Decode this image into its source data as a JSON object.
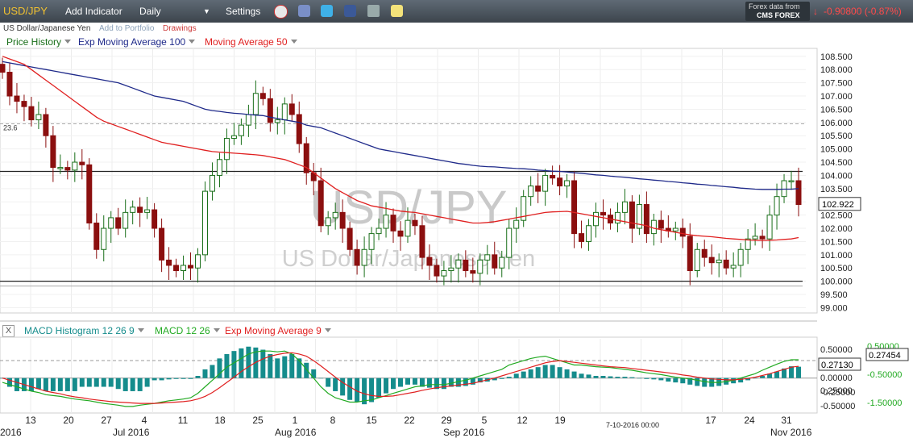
{
  "toolbar": {
    "symbol": "USD/JPY",
    "add_indicator": "Add Indicator",
    "interval": "Daily",
    "settings": "Settings",
    "source_line1": "Forex data from",
    "source_line2": "CMS FOREX",
    "change": "-0.90800 (-0.87%)"
  },
  "subbar": {
    "name": "US Dollar/Japanese Yen",
    "portfolio": "Add to Portfolio",
    "drawings": "Drawings"
  },
  "watermark": {
    "symbol": "USD/JPY",
    "name": "US Dollar/Japanese Yen"
  },
  "legend": {
    "price_history": "Price History",
    "ema": "Exp Moving Average 100",
    "ma": "Moving Average 50",
    "colors": {
      "price": "#1a6f1a",
      "ema": "#1f2a8a",
      "ma": "#e02020"
    }
  },
  "macd_legend": {
    "close": "X",
    "hist": "MACD Histogram 12 26 9",
    "macd": "MACD 12 26",
    "signal": "Exp Moving Average 9",
    "colors": {
      "hist": "#158c8c",
      "macd": "#22aa22",
      "signal": "#e02020"
    }
  },
  "chart_data": [
    {
      "type": "candlestick",
      "ylim": [
        98.8,
        108.8
      ],
      "y_ticks": [
        "108.500",
        "108.000",
        "107.500",
        "107.000",
        "106.500",
        "106.000",
        "105.500",
        "105.000",
        "104.500",
        "104.000",
        "103.500",
        "103.000",
        "102.500",
        "102.000",
        "101.500",
        "101.000",
        "100.500",
        "100.000",
        "99.500",
        "99.000"
      ],
      "current_price": "102.922",
      "fib_label": "23.6",
      "levels": {
        "resistance": 104.15,
        "support": 100.0,
        "fib": 105.95
      },
      "x_labels": [
        {
          "label": "13",
          "row": 1
        },
        {
          "label": "20",
          "row": 1
        },
        {
          "label": "27",
          "row": 1
        },
        {
          "label": "4",
          "row": 1
        },
        {
          "label": "11",
          "row": 1
        },
        {
          "label": "18",
          "row": 1
        },
        {
          "label": "25",
          "row": 1
        },
        {
          "label": "1",
          "row": 1
        },
        {
          "label": "8",
          "row": 1
        },
        {
          "label": "15",
          "row": 1
        },
        {
          "label": "22",
          "row": 1
        },
        {
          "label": "29",
          "row": 1
        },
        {
          "label": "5",
          "row": 1
        },
        {
          "label": "12",
          "row": 1
        },
        {
          "label": "19",
          "row": 1
        },
        {
          "label": "17",
          "row": 1
        },
        {
          "label": "24",
          "row": 1
        },
        {
          "label": "31",
          "row": 1
        },
        {
          "label": "2016",
          "row": 2
        },
        {
          "label": "Jul 2016",
          "row": 2
        },
        {
          "label": "Aug 2016",
          "row": 2
        },
        {
          "label": "Sep 2016",
          "row": 2
        },
        {
          "label": "Nov 2016",
          "row": 2
        }
      ],
      "cursor_date": "7-10-2016 00:00",
      "closes": [
        107.9,
        107.0,
        106.8,
        106.6,
        106.1,
        106.3,
        105.5,
        104.3,
        104.3,
        104.2,
        104.5,
        104.4,
        102.2,
        101.2,
        102.0,
        102.4,
        102.0,
        102.6,
        102.8,
        102.6,
        102.7,
        102.0,
        100.8,
        100.6,
        100.4,
        100.6,
        100.5,
        101.0,
        103.4,
        104.0,
        104.6,
        105.4,
        105.5,
        105.9,
        106.3,
        107.1,
        106.9,
        106.0,
        106.1,
        106.7,
        106.3,
        105.2,
        104.1,
        103.8,
        102.1,
        102.4,
        102.6,
        102.0,
        101.2,
        100.6,
        101.2,
        101.8,
        102.0,
        102.5,
        101.9,
        101.7,
        102.3,
        102.1,
        100.9,
        100.6,
        100.2,
        100.4,
        100.5,
        100.8,
        100.4,
        100.3,
        100.8,
        101.0,
        100.5,
        100.9,
        102.0,
        102.3,
        103.2,
        103.6,
        103.4,
        104.0,
        103.9,
        103.6,
        103.8,
        101.8,
        101.5,
        102.1,
        102.6,
        102.5,
        102.2,
        102.6,
        103.0,
        102.0,
        102.9,
        101.8,
        102.3,
        102.0,
        101.9,
        102.0,
        101.7,
        100.4,
        101.2,
        100.9,
        100.7,
        100.8,
        100.5,
        100.6,
        101.2,
        101.6,
        101.7,
        101.6,
        102.5,
        103.2,
        103.8,
        103.8,
        102.9
      ],
      "ema100": [
        108.3,
        108.25,
        108.2,
        108.15,
        108.1,
        108.05,
        108.0,
        107.95,
        107.9,
        107.85,
        107.8,
        107.75,
        107.7,
        107.65,
        107.6,
        107.55,
        107.5,
        107.4,
        107.3,
        107.2,
        107.1,
        107.0,
        106.95,
        106.9,
        106.85,
        106.8,
        106.7,
        106.6,
        106.5,
        106.45,
        106.42,
        106.38,
        106.35,
        106.33,
        106.3,
        106.28,
        106.26,
        106.2,
        106.15,
        106.1,
        106.05,
        106.0,
        105.9,
        105.85,
        105.8,
        105.7,
        105.6,
        105.5,
        105.4,
        105.3,
        105.2,
        105.1,
        105.0,
        104.95,
        104.9,
        104.85,
        104.8,
        104.75,
        104.7,
        104.65,
        104.6,
        104.55,
        104.5,
        104.45,
        104.42,
        104.38,
        104.35,
        104.33,
        104.32,
        104.3,
        104.28,
        104.26,
        104.25,
        104.23,
        104.2,
        104.18,
        104.16,
        104.15,
        104.13,
        104.1,
        104.08,
        104.05,
        104.02,
        104.0,
        103.97,
        103.95,
        103.93,
        103.9,
        103.87,
        103.85,
        103.82,
        103.8,
        103.77,
        103.75,
        103.72,
        103.7,
        103.67,
        103.65,
        103.62,
        103.6,
        103.57,
        103.55,
        103.52,
        103.5,
        103.48,
        103.47,
        103.47,
        103.47,
        103.48,
        103.48,
        103.5
      ],
      "ma50": [
        108.5,
        108.4,
        108.3,
        108.2,
        108.0,
        107.8,
        107.6,
        107.4,
        107.2,
        107.0,
        106.8,
        106.6,
        106.4,
        106.2,
        106.05,
        105.95,
        105.85,
        105.75,
        105.65,
        105.55,
        105.45,
        105.35,
        105.25,
        105.2,
        105.15,
        105.1,
        105.05,
        105.0,
        104.95,
        104.9,
        104.88,
        104.86,
        104.84,
        104.82,
        104.8,
        104.78,
        104.75,
        104.7,
        104.65,
        104.6,
        104.5,
        104.4,
        104.3,
        104.1,
        103.9,
        103.7,
        103.5,
        103.35,
        103.2,
        103.05,
        102.95,
        102.85,
        102.8,
        102.75,
        102.7,
        102.65,
        102.62,
        102.6,
        102.55,
        102.5,
        102.45,
        102.4,
        102.35,
        102.3,
        102.25,
        102.2,
        102.2,
        102.22,
        102.25,
        102.3,
        102.35,
        102.4,
        102.45,
        102.5,
        102.55,
        102.6,
        102.62,
        102.63,
        102.64,
        102.6,
        102.55,
        102.5,
        102.45,
        102.4,
        102.35,
        102.3,
        102.25,
        102.2,
        102.15,
        102.1,
        102.0,
        101.95,
        101.9,
        101.85,
        101.8,
        101.75,
        101.72,
        101.7,
        101.68,
        101.65,
        101.62,
        101.6,
        101.58,
        101.56,
        101.55,
        101.54,
        101.55,
        101.56,
        101.58,
        101.6,
        101.65
      ]
    },
    {
      "type": "macd",
      "ylim": [
        -0.8,
        0.9
      ],
      "left_ticks": [
        "0.50000",
        "0.25000",
        "0.00000",
        "-0.25000",
        "-0.50000"
      ],
      "right_ticks": [
        "0.50000",
        "-0.50000",
        "-1.50000"
      ],
      "value_box_1": "0.27454",
      "value_box_2": "0.27130",
      "histogram": [
        0.0,
        -0.2,
        -0.3,
        -0.3,
        -0.3,
        -0.25,
        -0.3,
        -0.3,
        -0.3,
        -0.3,
        -0.3,
        -0.2,
        -0.2,
        -0.2,
        -0.2,
        -0.2,
        -0.25,
        -0.3,
        -0.3,
        -0.3,
        -0.2,
        -0.05,
        -0.05,
        -0.03,
        -0.02,
        -0.02,
        -0.02,
        0.05,
        0.2,
        0.3,
        0.45,
        0.55,
        0.62,
        0.68,
        0.72,
        0.7,
        0.65,
        0.55,
        0.45,
        0.5,
        0.55,
        0.45,
        0.35,
        0.2,
        0.0,
        -0.2,
        -0.3,
        -0.4,
        -0.5,
        -0.55,
        -0.6,
        -0.55,
        -0.45,
        -0.35,
        -0.25,
        -0.2,
        -0.15,
        -0.15,
        -0.2,
        -0.22,
        -0.25,
        -0.25,
        -0.2,
        -0.2,
        -0.18,
        -0.15,
        -0.1,
        -0.08,
        -0.05,
        -0.02,
        0.03,
        0.1,
        0.15,
        0.2,
        0.25,
        0.3,
        0.3,
        0.25,
        0.2,
        0.15,
        0.1,
        0.08,
        0.05,
        0.05,
        0.04,
        0.03,
        0.03,
        0.02,
        0.0,
        -0.02,
        -0.03,
        -0.05,
        -0.08,
        -0.1,
        -0.12,
        -0.15,
        -0.18,
        -0.2,
        -0.2,
        -0.18,
        -0.15,
        -0.12,
        -0.1,
        -0.05,
        0.0,
        0.05,
        0.1,
        0.15,
        0.22,
        0.27,
        0.26
      ],
      "macd_line": [
        -0.1,
        -0.15,
        -0.2,
        -0.25,
        -0.3,
        -0.33,
        -0.38,
        -0.4,
        -0.42,
        -0.45,
        -0.48,
        -0.5,
        -0.52,
        -0.55,
        -0.58,
        -0.6,
        -0.62,
        -0.65,
        -0.65,
        -0.62,
        -0.6,
        -0.58,
        -0.55,
        -0.52,
        -0.5,
        -0.48,
        -0.45,
        -0.35,
        -0.2,
        -0.05,
        0.1,
        0.25,
        0.35,
        0.45,
        0.55,
        0.6,
        0.62,
        0.62,
        0.6,
        0.62,
        0.55,
        0.4,
        0.2,
        0.0,
        -0.2,
        -0.35,
        -0.45,
        -0.5,
        -0.55,
        -0.55,
        -0.52,
        -0.5,
        -0.45,
        -0.4,
        -0.35,
        -0.3,
        -0.25,
        -0.2,
        -0.18,
        -0.15,
        -0.15,
        -0.15,
        -0.12,
        -0.08,
        -0.05,
        0.0,
        0.05,
        0.1,
        0.15,
        0.2,
        0.3,
        0.35,
        0.4,
        0.45,
        0.48,
        0.5,
        0.45,
        0.4,
        0.35,
        0.3,
        0.3,
        0.28,
        0.26,
        0.25,
        0.24,
        0.22,
        0.2,
        0.18,
        0.15,
        0.12,
        0.1,
        0.08,
        0.05,
        0.02,
        0.0,
        -0.02,
        -0.05,
        -0.08,
        -0.1,
        -0.1,
        -0.08,
        -0.05,
        0.0,
        0.05,
        0.1,
        0.18,
        0.25,
        0.32,
        0.38,
        0.42,
        0.42
      ],
      "signal_line": [
        0.0,
        -0.05,
        -0.1,
        -0.15,
        -0.2,
        -0.25,
        -0.3,
        -0.33,
        -0.36,
        -0.4,
        -0.43,
        -0.45,
        -0.48,
        -0.5,
        -0.52,
        -0.54,
        -0.55,
        -0.56,
        -0.57,
        -0.58,
        -0.58,
        -0.58,
        -0.57,
        -0.56,
        -0.55,
        -0.54,
        -0.52,
        -0.48,
        -0.42,
        -0.33,
        -0.22,
        -0.1,
        0.02,
        0.15,
        0.26,
        0.36,
        0.44,
        0.5,
        0.54,
        0.57,
        0.58,
        0.55,
        0.5,
        0.4,
        0.28,
        0.15,
        0.02,
        -0.1,
        -0.2,
        -0.3,
        -0.36,
        -0.4,
        -0.42,
        -0.42,
        -0.41,
        -0.38,
        -0.35,
        -0.32,
        -0.28,
        -0.25,
        -0.22,
        -0.2,
        -0.18,
        -0.16,
        -0.14,
        -0.12,
        -0.08,
        -0.04,
        0.0,
        0.05,
        0.1,
        0.15,
        0.2,
        0.25,
        0.3,
        0.35,
        0.38,
        0.4,
        0.38,
        0.36,
        0.34,
        0.32,
        0.3,
        0.28,
        0.26,
        0.25,
        0.24,
        0.22,
        0.2,
        0.18,
        0.16,
        0.14,
        0.12,
        0.1,
        0.07,
        0.05,
        0.02,
        0.0,
        -0.02,
        -0.03,
        -0.04,
        -0.04,
        -0.03,
        -0.01,
        0.02,
        0.06,
        0.1,
        0.15,
        0.2,
        0.25,
        0.27
      ]
    }
  ]
}
